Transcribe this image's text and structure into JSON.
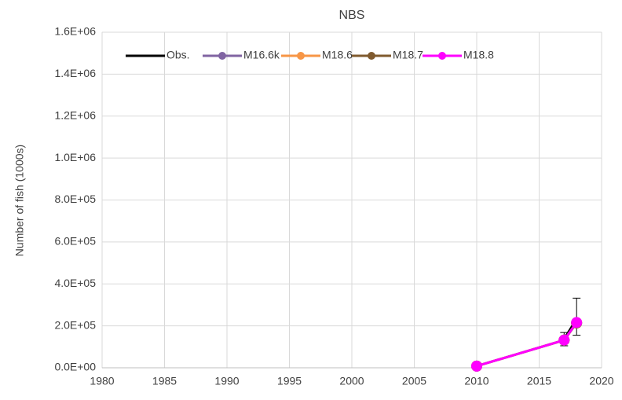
{
  "chart_data": {
    "type": "line",
    "title": "NBS",
    "y_label": "Number of fish (1000s)",
    "xlim": [
      1980,
      2020
    ],
    "xticks": [
      1980,
      1985,
      1990,
      1995,
      2000,
      2005,
      2010,
      2015,
      2020
    ],
    "ylim": [
      0,
      1600000
    ],
    "yticks": [
      {
        "value": 0,
        "label": "0.0E+00"
      },
      {
        "value": 200000,
        "label": "2.0E+05"
      },
      {
        "value": 400000,
        "label": "4.0E+05"
      },
      {
        "value": 600000,
        "label": "6.0E+05"
      },
      {
        "value": 800000,
        "label": "8.0E+05"
      },
      {
        "value": 1000000,
        "label": "1.0E+06"
      },
      {
        "value": 1200000,
        "label": "1.2E+06"
      },
      {
        "value": 1400000,
        "label": "1.4E+06"
      },
      {
        "value": 1600000,
        "label": "1.6E+06"
      }
    ],
    "grid": true,
    "legend": "top",
    "series": [
      {
        "name": "Obs.",
        "color": "#000000",
        "markers": false,
        "x": [
          2017,
          2018
        ],
        "values": [
          137000,
          232000
        ],
        "error_low": [
          105000,
          155000
        ],
        "error_high": [
          168000,
          332000
        ]
      },
      {
        "name": "M16.6k",
        "color": "#8064a2",
        "markers": true,
        "x": [
          2010,
          2017,
          2018
        ],
        "values": [
          8000,
          132000,
          214000
        ]
      },
      {
        "name": "M18.6",
        "color": "#f79646",
        "markers": true,
        "x": [
          2010,
          2017,
          2018
        ],
        "values": [
          8000,
          132000,
          214000
        ]
      },
      {
        "name": "M18.7",
        "color": "#7f5a2e",
        "markers": true,
        "x": [
          2010,
          2017,
          2018
        ],
        "values": [
          8000,
          132000,
          214000
        ]
      },
      {
        "name": "M18.8",
        "color": "#ff00ff",
        "markers": true,
        "x": [
          2010,
          2017,
          2018
        ],
        "values": [
          8000,
          132000,
          216000
        ]
      }
    ]
  }
}
